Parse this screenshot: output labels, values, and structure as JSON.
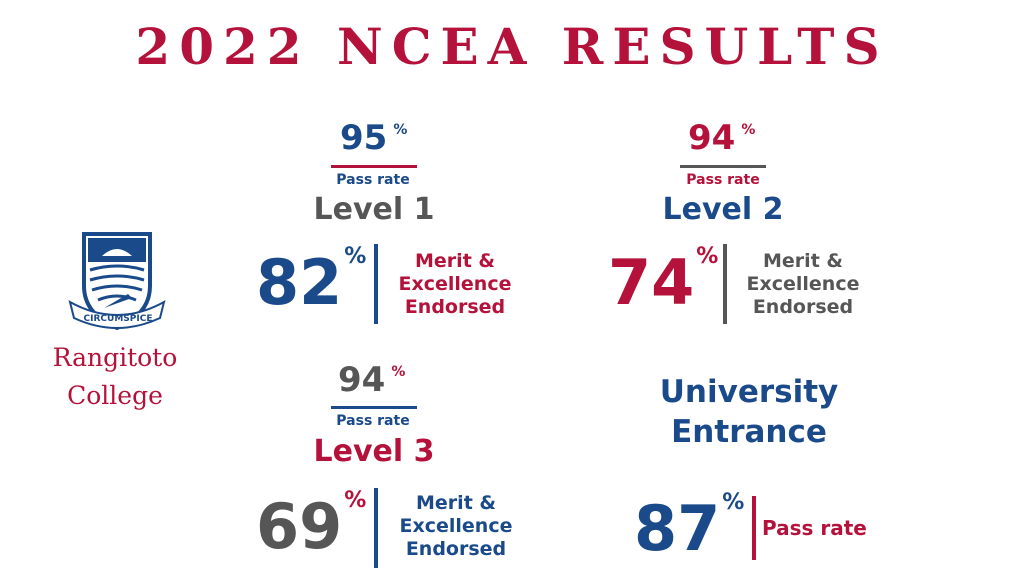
{
  "title": "2022 NCEA RESULTS",
  "college": {
    "line1": "Rangitoto",
    "line2": "College",
    "motto": "CIRCUMSPICE"
  },
  "level1": {
    "pass_value": "95",
    "pass_pct": "%",
    "pass_label": "Pass rate",
    "level_label": "Level 1",
    "endorsed_value": "82",
    "endorsed_pct": "%",
    "endorsed_lines": [
      "Merit &",
      "Excellence",
      "Endorsed"
    ]
  },
  "level2": {
    "pass_value": "94",
    "pass_pct": "%",
    "pass_label": "Pass rate",
    "level_label": "Level 2",
    "endorsed_value": "74",
    "endorsed_pct": "%",
    "endorsed_lines": [
      "Merit &",
      "Excellence",
      "Endorsed"
    ]
  },
  "level3": {
    "pass_value": "94",
    "pass_pct": "%",
    "pass_label": "Pass rate",
    "level_label": "Level 3",
    "endorsed_value": "69",
    "endorsed_pct": "%",
    "endorsed_lines": [
      "Merit &",
      "Excellence",
      "Endorsed"
    ]
  },
  "ue": {
    "title_lines": [
      "University",
      "Entrance"
    ],
    "value": "87",
    "pct": "%",
    "label": "Pass rate"
  },
  "colors": {
    "red": "#b4123a",
    "blue": "#1a4a8a",
    "grey": "#565656"
  }
}
